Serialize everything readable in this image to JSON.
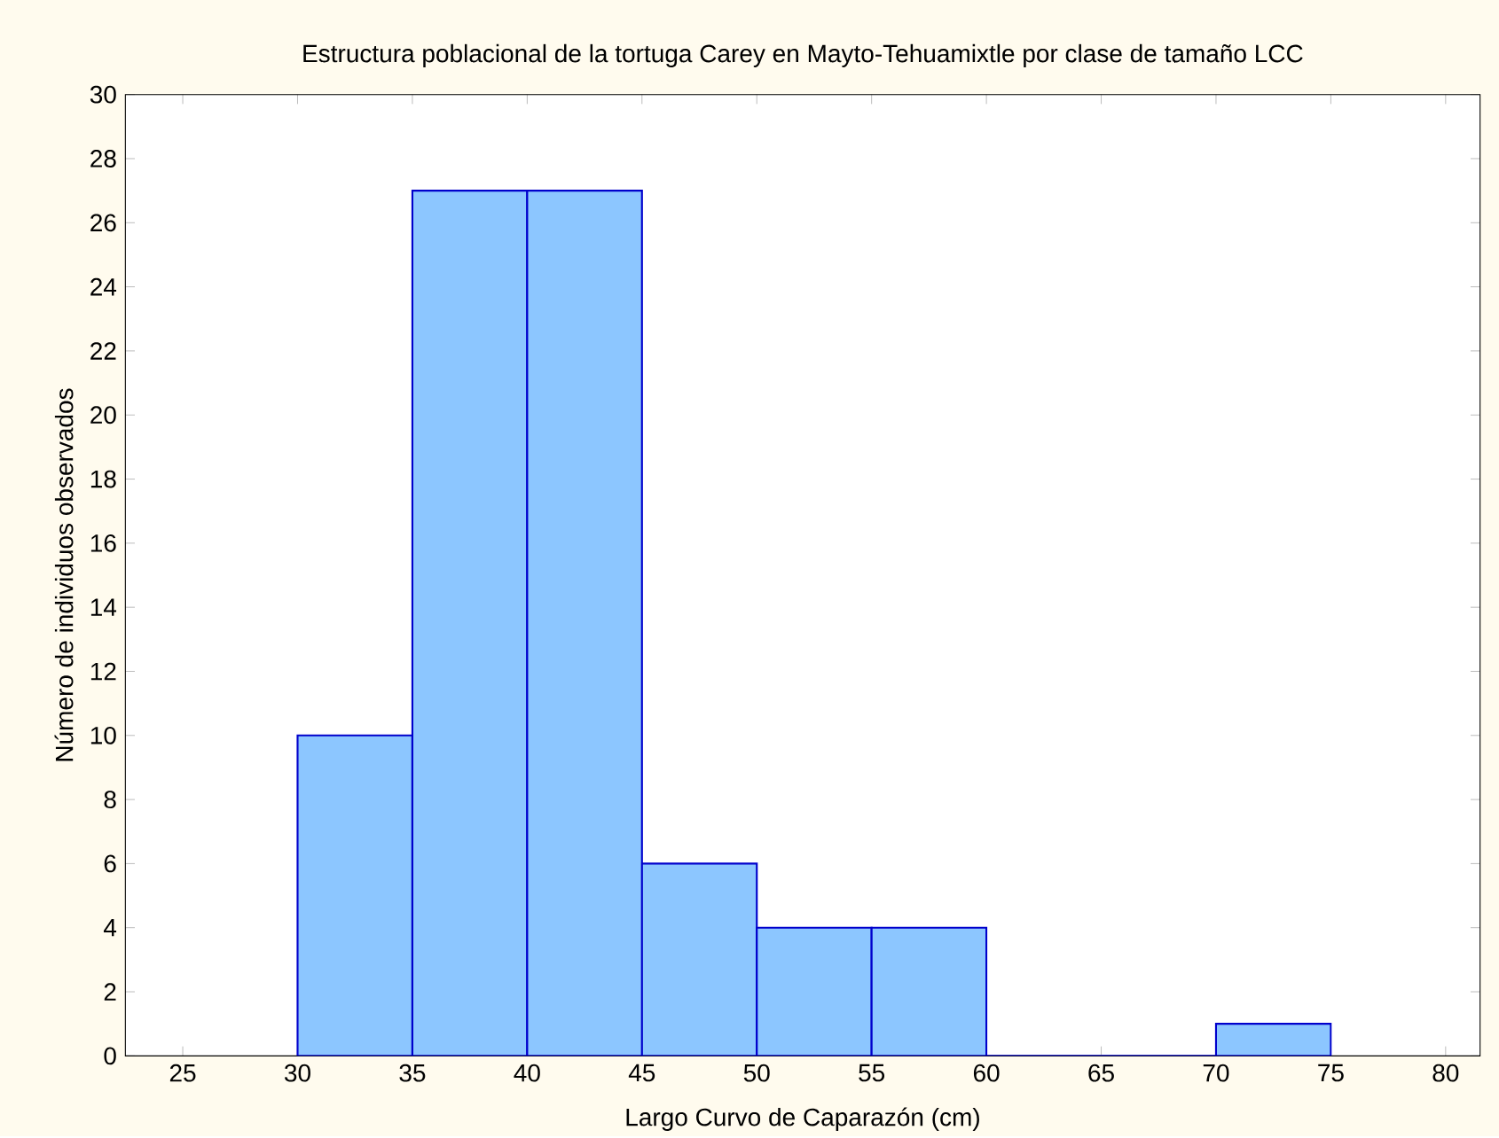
{
  "chart_data": {
    "type": "histogram",
    "title": "Estructura poblacional de la tortuga Carey en Mayto-Tehuamixtle por clase de tamaño LCC",
    "xlabel": "Largo Curvo de Caparazón (cm)",
    "ylabel": "Número de individuos observados",
    "bins": [
      30,
      35,
      40,
      45,
      50,
      55,
      60,
      65,
      70,
      75
    ],
    "values": [
      10,
      27,
      27,
      6,
      4,
      4,
      0,
      0,
      1
    ],
    "color": "#8cc6ff",
    "xlim": [
      22.5,
      81.5
    ],
    "ylim": [
      0,
      30
    ],
    "xticks": [
      25,
      30,
      35,
      40,
      45,
      50,
      55,
      60,
      65,
      70,
      75,
      80
    ],
    "yticks": [
      0,
      2,
      4,
      6,
      8,
      10,
      12,
      14,
      16,
      18,
      20,
      22,
      24,
      26,
      28,
      30
    ],
    "grid": false
  }
}
